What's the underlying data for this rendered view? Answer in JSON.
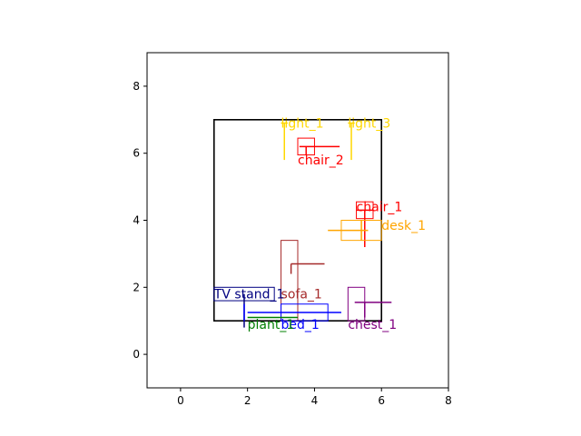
{
  "chart_data": {
    "type": "scatter",
    "title": "",
    "xlabel": "",
    "ylabel": "",
    "xlim": [
      -1,
      8
    ],
    "ylim": [
      -1,
      9
    ],
    "xticks": [
      "0",
      "2",
      "4",
      "6",
      "8"
    ],
    "yticks": [
      "0",
      "2",
      "4",
      "6",
      "8"
    ],
    "grid": false,
    "room": {
      "x0": 1,
      "y0": 1,
      "x1": 6,
      "y1": 7,
      "color": "#000000"
    },
    "objects": [
      {
        "label": "light_1",
        "color": "#ffd700",
        "rect": null,
        "hline": [
          3.0,
          3.2,
          6.9
        ],
        "vline": [
          3.1,
          5.8,
          6.9
        ],
        "label_at": [
          3.0,
          6.9
        ]
      },
      {
        "label": "light_3",
        "color": "#ffd700",
        "rect": null,
        "hline": [
          5.0,
          5.2,
          6.9
        ],
        "vline": [
          5.1,
          5.8,
          6.9
        ],
        "label_at": [
          5.0,
          6.9
        ]
      },
      {
        "label": "chair_2",
        "color": "#ff0000",
        "rect": [
          3.5,
          5.95,
          4.0,
          6.45
        ],
        "hline": [
          3.55,
          4.75,
          6.2
        ],
        "vline": [
          3.75,
          5.95,
          6.2
        ],
        "label_at": [
          3.5,
          5.8
        ]
      },
      {
        "label": "chair_1",
        "color": "#ff0000",
        "rect": [
          5.25,
          4.05,
          5.75,
          4.55
        ],
        "hline": [
          5.25,
          5.75,
          4.3
        ],
        "vline": [
          5.5,
          3.2,
          4.3
        ],
        "label_at": [
          5.25,
          4.4
        ]
      },
      {
        "label": "desk_1",
        "color": "#ffa500",
        "rect": [
          4.8,
          3.4,
          6.0,
          4.0
        ],
        "hline": [
          4.4,
          5.6,
          3.7
        ],
        "vline": [
          5.4,
          3.4,
          4.0
        ],
        "label_at": [
          6.0,
          3.85
        ]
      },
      {
        "label": "sofa_1",
        "color": "#a52a2a",
        "rect": [
          3.0,
          1.0,
          3.5,
          3.4
        ],
        "hline": [
          3.3,
          4.3,
          2.7
        ],
        "vline": [
          3.3,
          2.4,
          2.7
        ],
        "label_at": [
          3.0,
          1.8
        ]
      },
      {
        "label": "TV stand_1",
        "color": "#000080",
        "rect": [
          1.0,
          1.6,
          2.8,
          2.0
        ],
        "hline": null,
        "vline": [
          1.9,
          0.8,
          1.8
        ],
        "label_at": [
          1.0,
          1.8
        ]
      },
      {
        "label": "bed_1",
        "color": "#0000ff",
        "rect": [
          3.0,
          1.0,
          4.4,
          1.5
        ],
        "hline": [
          2.0,
          4.8,
          1.25
        ],
        "vline": [
          1.9,
          1.0,
          1.5
        ],
        "label_at": [
          3.0,
          0.9
        ]
      },
      {
        "label": "plant_1",
        "color": "#008000",
        "rect": null,
        "hline": [
          2.0,
          3.5,
          1.1
        ],
        "vline": null,
        "label_at": [
          2.0,
          0.9
        ]
      },
      {
        "label": "chest_1",
        "color": "#800080",
        "rect": [
          5.0,
          1.0,
          5.5,
          2.0
        ],
        "hline": [
          5.2,
          6.3,
          1.55
        ],
        "vline": [
          5.5,
          1.1,
          1.55
        ],
        "label_at": [
          5.0,
          0.9
        ]
      }
    ]
  }
}
